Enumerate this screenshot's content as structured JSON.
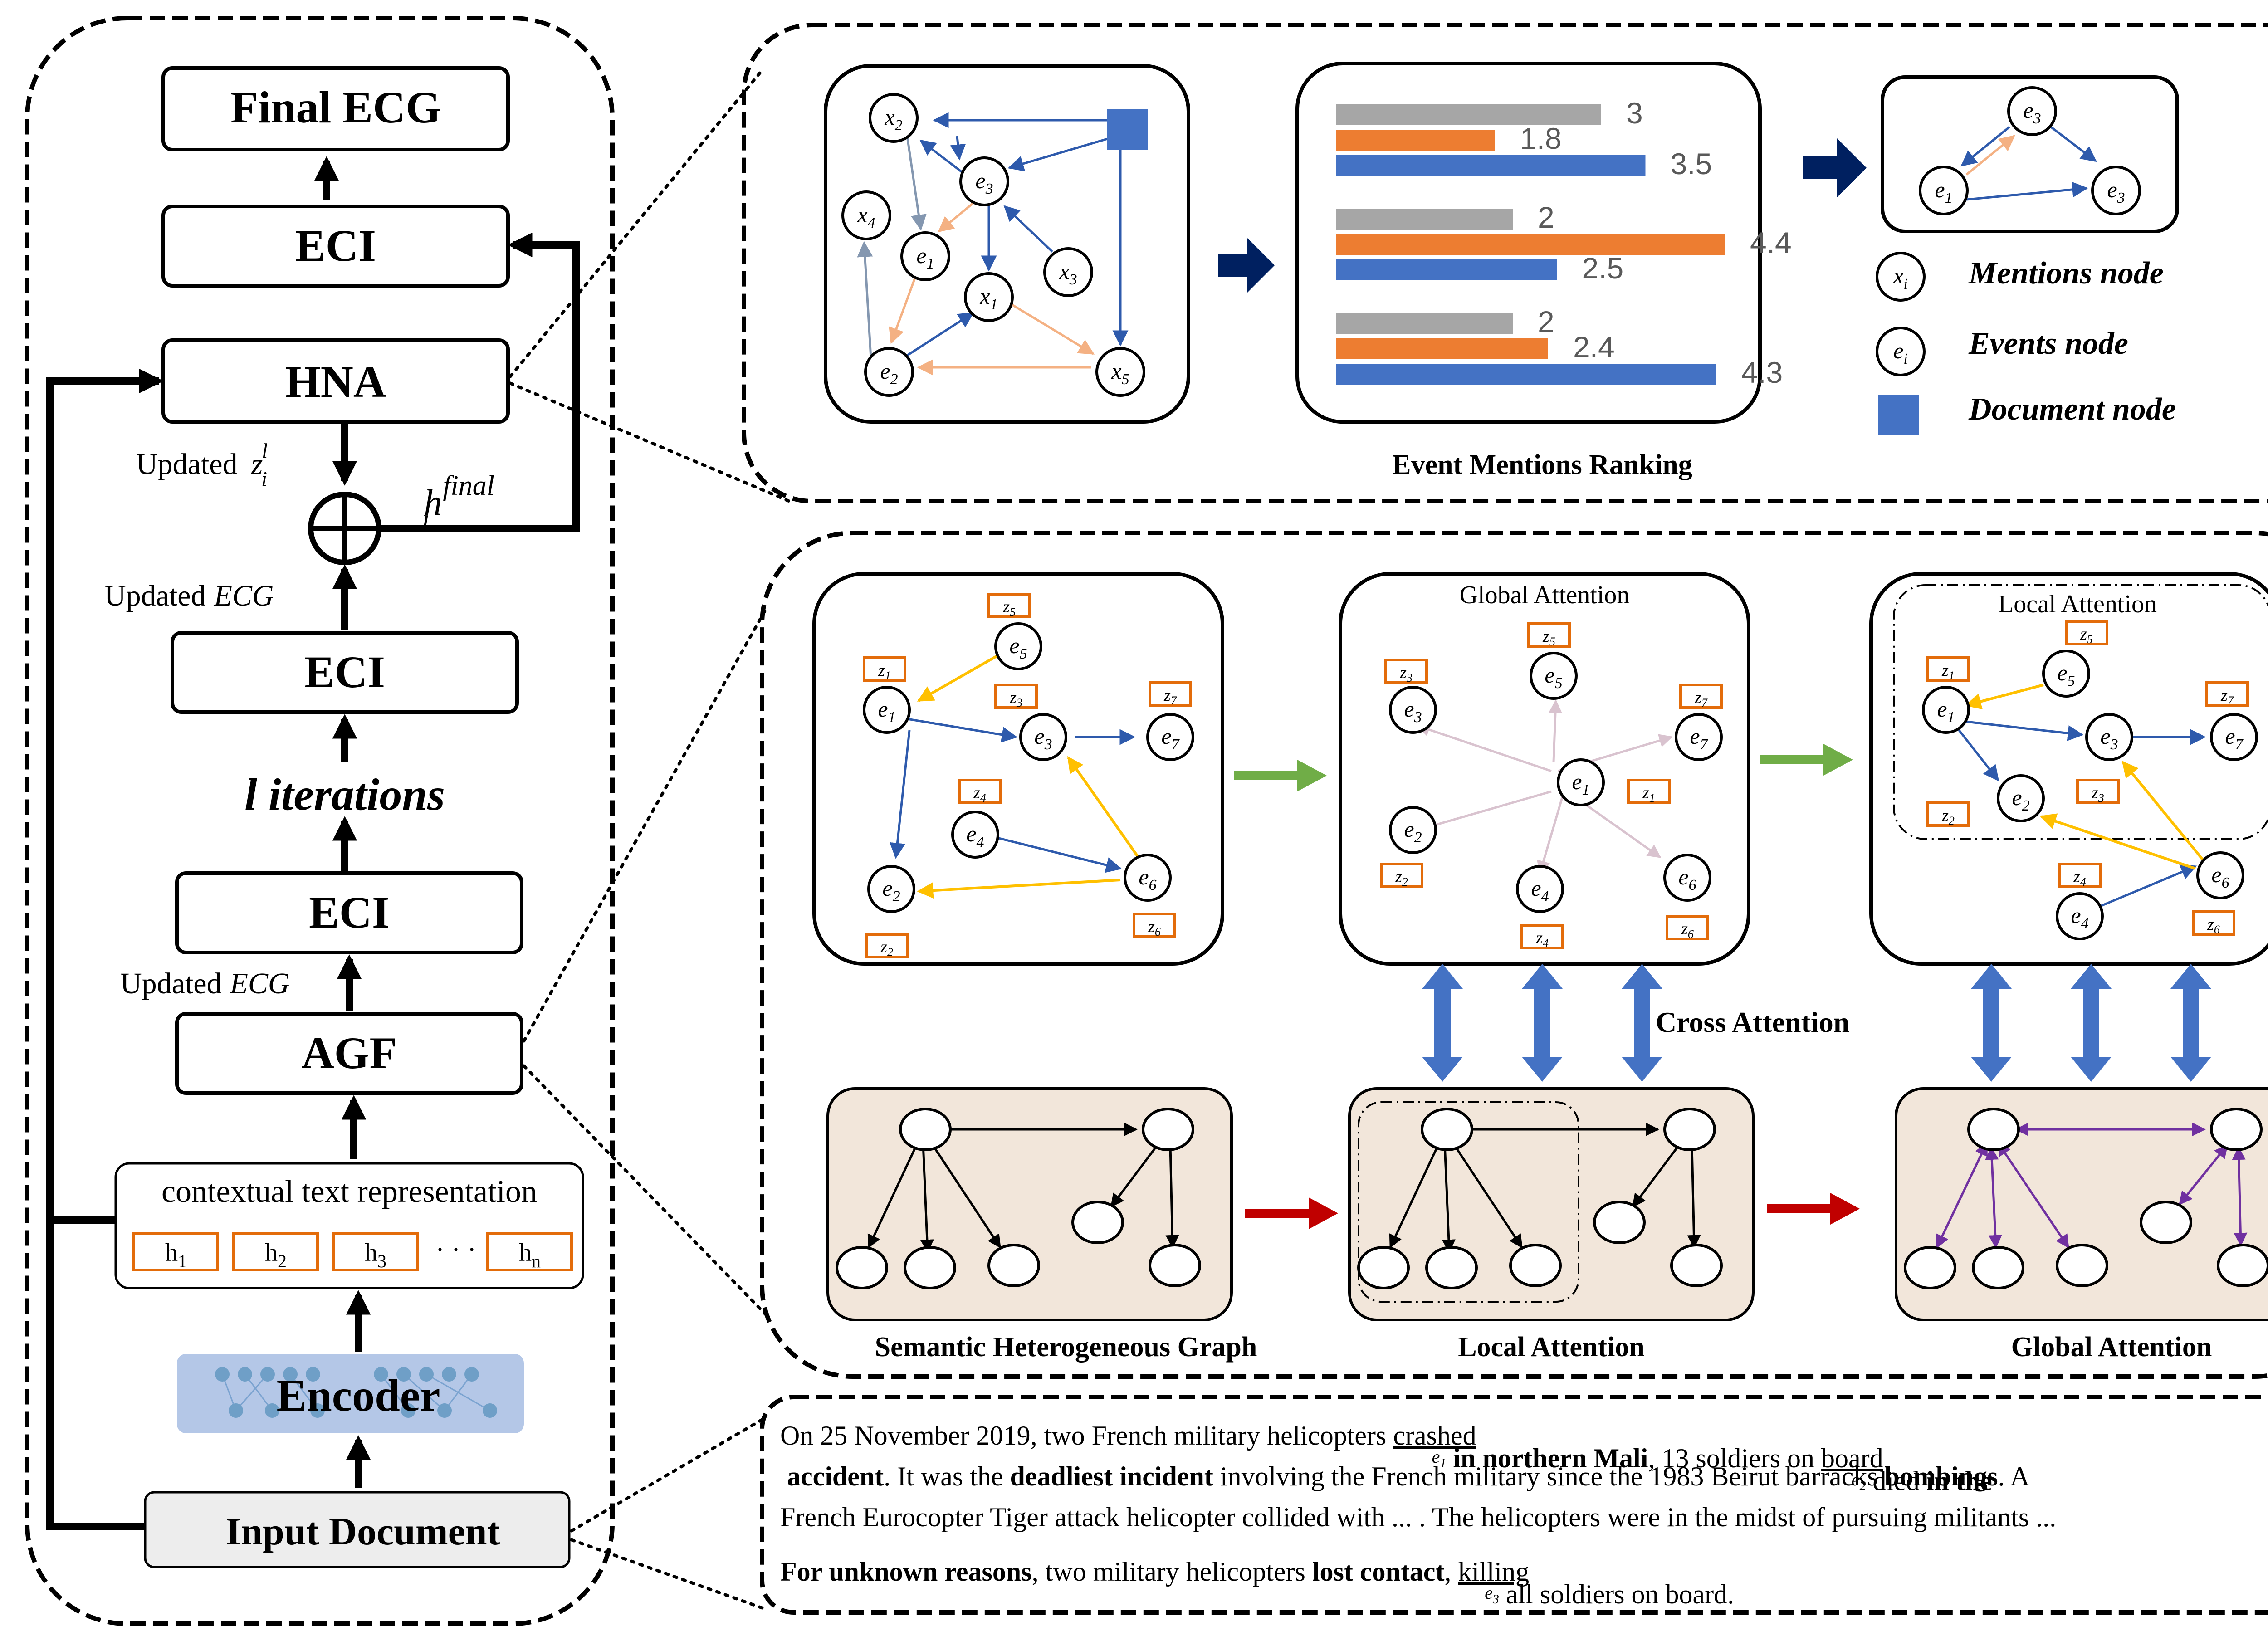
{
  "left_panel": {
    "final_ecg": "Final ECG",
    "eci_top": "ECI",
    "hna": "HNA",
    "updated_z": "Updated",
    "z_sym": "z",
    "z_sup": "l",
    "z_sub": "i",
    "h_sym": "h",
    "h_sup": "final",
    "h_sub": "i",
    "updated_ecg_1": "Updated",
    "updated_ecg_1_ital": "ECG",
    "eci_mid": "ECI",
    "iterations": "l iterations",
    "eci_low": "ECI",
    "updated_ecg_2": "Updated",
    "updated_ecg_2_ital": "ECG",
    "agf": "AGF",
    "contextual": "contextual text representation",
    "h_tokens": [
      "h",
      "h",
      "h",
      "h"
    ],
    "h_token_subs": [
      "1",
      "2",
      "3",
      "n"
    ],
    "ellipsis": "· · ·",
    "encoder": "Encoder",
    "input_document": "Input Document"
  },
  "ranking_panel": {
    "title": "Event Mentions Ranking",
    "legend": {
      "mentions": "Mentions node",
      "events": "Events node",
      "document": "Document node",
      "mention_sym": "x",
      "mention_sub": "i",
      "event_sym": "e",
      "event_sub": "i"
    },
    "graph_nodes": [
      {
        "sym": "x",
        "sub": "2"
      },
      {
        "sym": "e",
        "sub": "3"
      },
      {
        "sym": "x",
        "sub": "4"
      },
      {
        "sym": "e",
        "sub": "1"
      },
      {
        "sym": "x",
        "sub": "1"
      },
      {
        "sym": "x",
        "sub": "3"
      },
      {
        "sym": "e",
        "sub": "2"
      },
      {
        "sym": "x",
        "sub": "5"
      }
    ],
    "result_nodes": [
      {
        "sym": "e",
        "sub": "3"
      },
      {
        "sym": "e",
        "sub": "1"
      },
      {
        "sym": "e",
        "sub": "3"
      }
    ]
  },
  "chart_data": {
    "type": "bar",
    "orientation": "horizontal",
    "groups": [
      {
        "values": [
          3,
          1.8,
          3.5
        ]
      },
      {
        "values": [
          2,
          4.4,
          2.5
        ]
      },
      {
        "values": [
          2,
          2.4,
          4.3
        ]
      }
    ],
    "colors": [
      "#a6a6a6",
      "#ed7d31",
      "#4472c4"
    ]
  },
  "attention_panel": {
    "global_attention_title": "Global Attention",
    "local_attention_title": "Local Attention",
    "cross_attention": "Cross Attention",
    "semantic_graph_label": "Semantic Heterogeneous Graph",
    "local_attention_label": "Local Attention",
    "global_attention_label": "Global Attention",
    "z_labels": [
      "z",
      "z",
      "z",
      "z",
      "z",
      "z",
      "z"
    ],
    "z_subs": [
      "1",
      "2",
      "3",
      "4",
      "5",
      "6",
      "7"
    ],
    "e_sym": "e",
    "e_subs": [
      "1",
      "2",
      "3",
      "4",
      "5",
      "6",
      "7"
    ]
  },
  "document_panel": {
    "line1": [
      {
        "t": "On 25 November 2019, two French military helicopters ",
        "s": "n"
      },
      {
        "t": "crashed",
        "s": "u",
        "sub": "e1"
      },
      {
        "t": " in northern Mali",
        "s": "b"
      },
      {
        "t": ", 13 soldiers on ",
        "s": "n"
      },
      {
        "t": "board",
        "s": "u",
        "sub": "e2"
      },
      {
        "t": " died ",
        "s": "n"
      },
      {
        "t": "in the",
        "s": "b"
      }
    ],
    "line2": [
      {
        "t": "accident",
        "s": "b"
      },
      {
        "t": ". It was the ",
        "s": "n"
      },
      {
        "t": "deadliest incident",
        "s": "b"
      },
      {
        "t": " involving the French military since the 1983 Beirut barracks ",
        "s": "n"
      },
      {
        "t": "bombings",
        "s": "b"
      },
      {
        "t": ". A",
        "s": "n"
      }
    ],
    "line3": [
      {
        "t": "French Eurocopter Tiger attack helicopter collided with ... . The helicopters were in the midst of pursuing militants ...",
        "s": "n"
      }
    ],
    "line4": [
      {
        "t": "For unknown reasons",
        "s": "b"
      },
      {
        "t": ", two military helicopters ",
        "s": "n"
      },
      {
        "t": "lost contact",
        "s": "b"
      },
      {
        "t": ", ",
        "s": "n"
      },
      {
        "t": "killing",
        "s": "u",
        "sub": "e3"
      },
      {
        "t": " all soldiers on board.",
        "s": "n"
      }
    ]
  }
}
